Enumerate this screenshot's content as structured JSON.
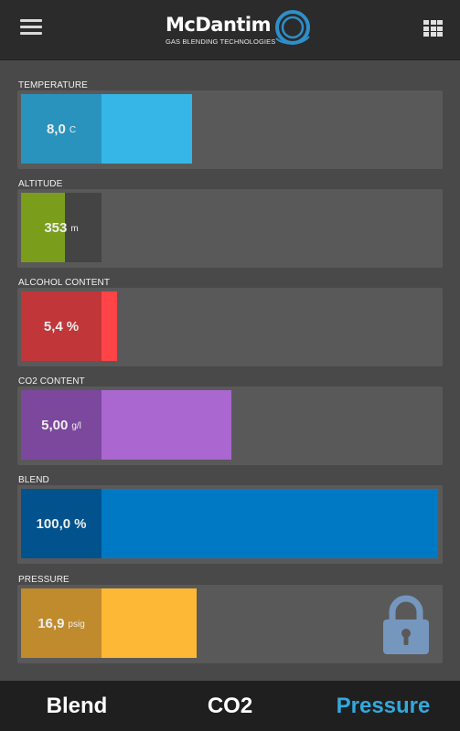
{
  "header": {
    "logo_name": "McDantim",
    "logo_tagline": "GAS BLENDING TECHNOLOGIES",
    "menu_icon": "hamburger-menu-icon",
    "grid_icon": "grid-menu-icon"
  },
  "readings": [
    {
      "label": "TEMPERATURE",
      "value": "8,0",
      "unit": "C",
      "fill_fraction": 0.41,
      "color": "#35b6e6",
      "value_color": "#2a93bd"
    },
    {
      "label": "ALTITUDE",
      "value": "353",
      "unit": "m",
      "fill_fraction": 0.105,
      "color": "#7a9e1b",
      "value_color": "#6f9a0a"
    },
    {
      "label": "ALCOHOL CONTENT",
      "value": "5,4",
      "unit": "%",
      "fill_fraction": 0.23,
      "color": "#fe4446",
      "value_color": "#c13638"
    },
    {
      "label": "CO2 CONTENT",
      "value": "5,00",
      "unit": "g/l",
      "fill_fraction": 0.505,
      "color": "#aa67d0",
      "value_color": "#7b489d"
    },
    {
      "label": "BLEND",
      "value": "100,0",
      "unit": "%",
      "fill_fraction": 1.0,
      "color": "#0079c5",
      "value_color": "#02528d"
    },
    {
      "label": "PRESSURE",
      "value": "16,9",
      "unit": "psig",
      "fill_fraction": 0.42,
      "color": "#fdb935",
      "value_color": "#c08b2c"
    }
  ],
  "pressure_lock": {
    "icon": "padlock-icon",
    "state": "locked",
    "color": "#7597be"
  },
  "bottom_nav": {
    "items": [
      {
        "label": "Blend",
        "active": false
      },
      {
        "label": "CO2",
        "active": false
      },
      {
        "label": "Pressure",
        "active": true
      }
    ],
    "active_color": "#33a9dd",
    "inactive_color": "#ffffff"
  }
}
